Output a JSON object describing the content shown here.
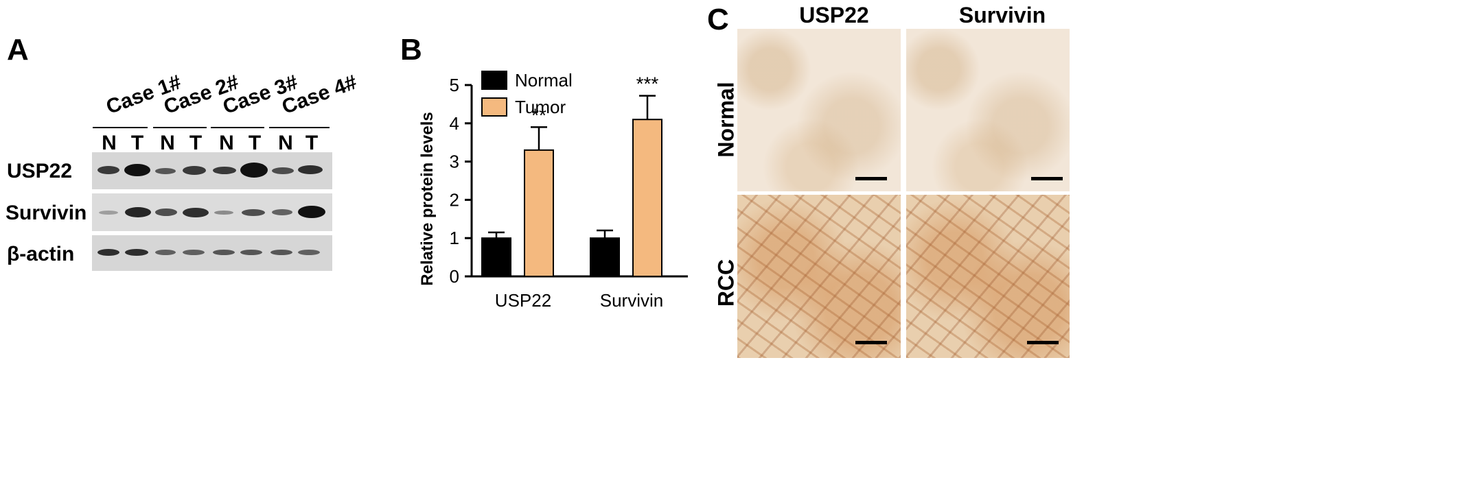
{
  "panels": {
    "a": {
      "letter": "A",
      "cases": [
        "Case 1#",
        "Case 2#",
        "Case 3#",
        "Case 4#"
      ],
      "lanes": [
        "N",
        "T",
        "N",
        "T",
        "N",
        "T",
        "N",
        "T"
      ],
      "rows": [
        "USP22",
        "Survivin",
        "β-actin"
      ]
    },
    "b": {
      "letter": "B"
    },
    "c": {
      "letter": "C",
      "columns": [
        "USP22",
        "Survivin"
      ],
      "rows": [
        "Normal",
        "RCC"
      ]
    }
  },
  "chart_data": {
    "type": "bar",
    "categories": [
      "USP22",
      "Survivin"
    ],
    "series": [
      {
        "name": "Normal",
        "values": [
          1.0,
          1.0
        ],
        "errors": [
          0.15,
          0.2
        ],
        "color": "#000000"
      },
      {
        "name": "Tumor",
        "values": [
          3.3,
          4.1
        ],
        "errors": [
          0.6,
          0.62
        ],
        "color": "#f4b97f"
      }
    ],
    "annotations": [
      "**",
      "***"
    ],
    "ylabel": "Relative protein levels",
    "xlabel": "",
    "ylim": [
      0,
      5
    ],
    "yticks": [
      0,
      1,
      2,
      3,
      4,
      5
    ],
    "legend": "top-left",
    "grid": false
  }
}
